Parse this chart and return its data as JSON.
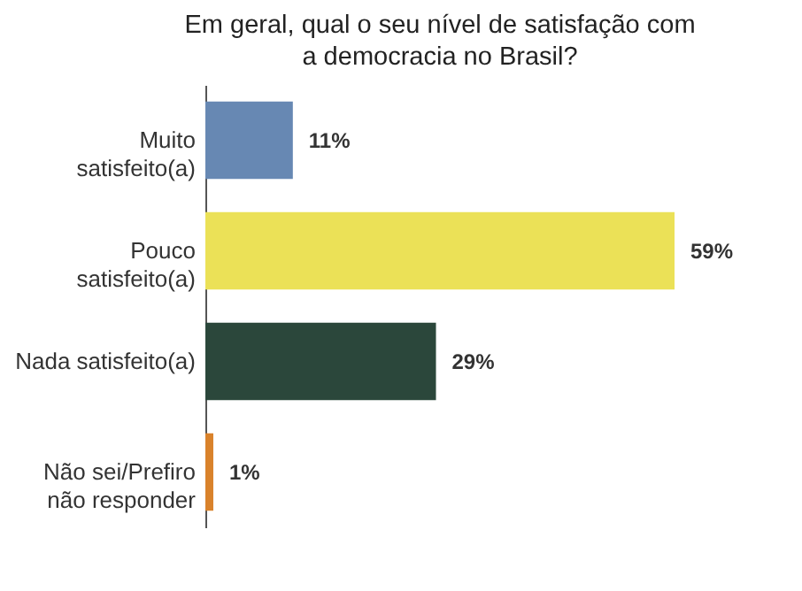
{
  "chart_data": {
    "type": "bar",
    "orientation": "horizontal",
    "title": "Em geral, qual o seu nível de satisfação com a democracia no Brasil?",
    "categories": [
      "Muito satisfeito(a)",
      "Pouco satisfeito(a)",
      "Nada satisfeito(a)",
      "Não sei/Prefiro não responder"
    ],
    "values": [
      11,
      59,
      29,
      1
    ],
    "colors": [
      "#6788b3",
      "#ebe157",
      "#2b473b",
      "#d9822b"
    ],
    "value_labels": [
      "11%",
      "59%",
      "29%",
      "1%"
    ]
  }
}
